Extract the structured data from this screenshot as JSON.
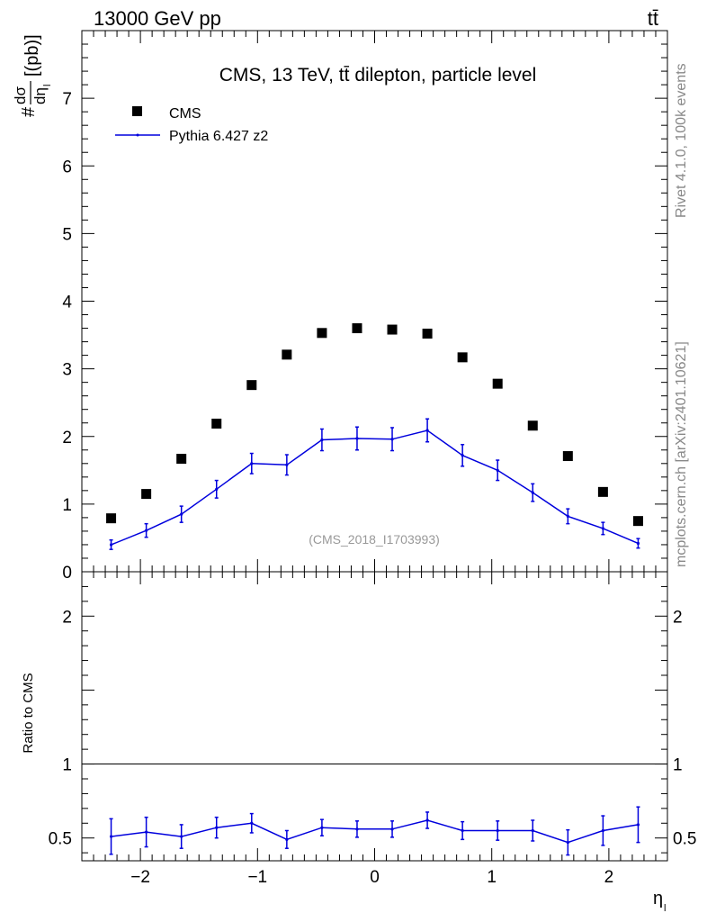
{
  "header": {
    "energy_label": "13000 GeV pp",
    "process_label": "tt̄"
  },
  "side_labels": {
    "rivet": "Rivet 4.1.0,  100k events",
    "site": "mcplots.cern.ch [arXiv:2401.10621]"
  },
  "chart_data": [
    {
      "type": "scatter",
      "panel": "main",
      "title": "CMS, 13 TeV, tt̄ dilepton, particle level",
      "watermark": "(CMS_2018_I1703993)",
      "ylabel": "#dσ/dη_l [(pb)]",
      "ylabel_parts": {
        "hash": "#",
        "num": "dσ",
        "den": "dη",
        "sub": "l",
        "unit": "[(pb)]"
      },
      "xlabel": "η_l",
      "xlim": [
        -2.5,
        2.5
      ],
      "ylim": [
        0,
        8
      ],
      "yticks": [
        "0",
        "1",
        "2",
        "3",
        "4",
        "5",
        "6",
        "7"
      ],
      "xticks": [
        "−2",
        "−1",
        "0",
        "1",
        "2"
      ],
      "x": [
        -2.25,
        -1.95,
        -1.65,
        -1.35,
        -1.05,
        -0.75,
        -0.45,
        -0.15,
        0.15,
        0.45,
        0.75,
        1.05,
        1.35,
        1.65,
        1.95,
        2.25
      ],
      "series": [
        {
          "name": "CMS",
          "style": "markers",
          "color": "#000000",
          "values": [
            0.79,
            1.15,
            1.67,
            2.19,
            2.76,
            3.21,
            3.53,
            3.6,
            3.58,
            3.52,
            3.17,
            2.78,
            2.16,
            1.71,
            1.18,
            0.75
          ]
        },
        {
          "name": "Pythia 6.427 z2",
          "style": "line",
          "color": "#0000dd",
          "values": [
            0.4,
            0.61,
            0.85,
            1.22,
            1.6,
            1.58,
            1.95,
            1.97,
            1.96,
            2.09,
            1.72,
            1.5,
            1.17,
            0.82,
            0.64,
            0.42
          ],
          "errors": [
            0.07,
            0.1,
            0.12,
            0.13,
            0.15,
            0.15,
            0.16,
            0.17,
            0.17,
            0.17,
            0.16,
            0.15,
            0.13,
            0.11,
            0.09,
            0.07
          ]
        }
      ]
    },
    {
      "type": "line",
      "panel": "ratio",
      "ylabel": "Ratio to CMS",
      "xlim": [
        -2.5,
        2.5
      ],
      "ylim": [
        0.346,
        2.3
      ],
      "ytick_labels": [
        {
          "value": 0.5,
          "label": "0.5"
        },
        {
          "value": 1,
          "label": "1"
        },
        {
          "value": 2,
          "label": "2"
        }
      ],
      "reference_line": 1,
      "x": [
        -2.25,
        -1.95,
        -1.65,
        -1.35,
        -1.05,
        -0.75,
        -0.45,
        -0.15,
        0.15,
        0.45,
        0.75,
        1.05,
        1.35,
        1.65,
        1.95,
        2.25
      ],
      "series": [
        {
          "name": "Pythia 6.427 z2",
          "color": "#0000dd",
          "values": [
            0.51,
            0.54,
            0.51,
            0.57,
            0.6,
            0.49,
            0.57,
            0.56,
            0.56,
            0.62,
            0.55,
            0.55,
            0.55,
            0.47,
            0.55,
            0.59
          ],
          "errors": [
            0.12,
            0.1,
            0.08,
            0.07,
            0.065,
            0.06,
            0.055,
            0.055,
            0.055,
            0.055,
            0.06,
            0.065,
            0.07,
            0.085,
            0.1,
            0.12
          ]
        }
      ]
    }
  ]
}
